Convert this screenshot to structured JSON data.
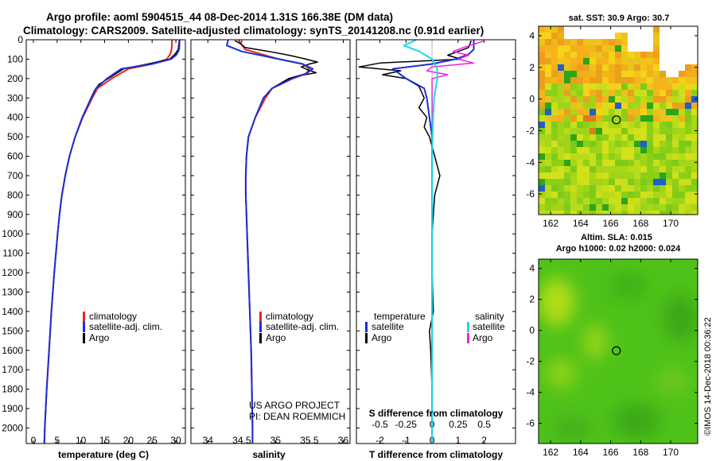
{
  "title": {
    "line1": "Argo profile: aoml 5904515_44 08-Dec-2014 1.31S 166.38E (DM data)",
    "line2": "Climatology: CARS2009. Satellite-adjusted climatology: synTS_20141208.nc (0.91d earlier)"
  },
  "colors": {
    "climatology": "#e8261c",
    "satellite": "#1a2fd6",
    "argo": "#000000",
    "satellite_s": "#22d4ee",
    "argo_s": "#ee22dd"
  },
  "credit": {
    "project": "US ARGO PROJECT",
    "pi": "PI: DEAN ROEMMICH"
  },
  "stamp": "©IMOS 14-Dec-2018 00:36:22",
  "chart_data": [
    {
      "type": "line",
      "name": "temperature",
      "xlabel": "temperature (deg C)",
      "ylabel": "",
      "xlim": [
        -1.5,
        32
      ],
      "ylim": [
        2080,
        0
      ],
      "xticks": [
        0,
        5,
        10,
        15,
        20,
        25,
        30
      ],
      "yticks": [
        0,
        100,
        200,
        300,
        400,
        500,
        600,
        700,
        800,
        900,
        1000,
        1100,
        1200,
        1300,
        1400,
        1500,
        1600,
        1700,
        1800,
        1900,
        2000
      ],
      "legend": [
        "climatology",
        "satellite-adj. clim.",
        "Argo"
      ],
      "series": [
        {
          "name": "climatology",
          "depth": [
            0,
            50,
            75,
            100,
            125,
            150,
            200,
            250,
            300,
            400,
            500,
            600,
            700,
            800,
            900,
            1000,
            1200,
            1400,
            1600,
            1800,
            2000,
            2080
          ],
          "values": [
            29.2,
            29.1,
            28.8,
            28.1,
            25.0,
            20.0,
            16.5,
            13.5,
            12.4,
            10.4,
            8.8,
            7.6,
            6.7,
            6.0,
            5.5,
            5.1,
            4.4,
            3.8,
            3.3,
            2.8,
            2.4,
            2.3
          ]
        },
        {
          "name": "satellite-adj. clim.",
          "depth": [
            0,
            50,
            75,
            100,
            125,
            150,
            200,
            250,
            300,
            400,
            500,
            600,
            700,
            800,
            900,
            1000,
            1200,
            1400,
            1600,
            1800,
            2000,
            2080
          ],
          "values": [
            30.8,
            30.7,
            30.2,
            29.0,
            25.0,
            18.5,
            15.5,
            13.2,
            12.2,
            10.3,
            8.8,
            7.6,
            6.7,
            6.0,
            5.5,
            5.1,
            4.4,
            3.8,
            3.3,
            2.8,
            2.4,
            2.3
          ]
        },
        {
          "name": "Argo",
          "depth": [
            5,
            50,
            75,
            100,
            120,
            150,
            200,
            230,
            260,
            300,
            400,
            500,
            600,
            700,
            800,
            900,
            1000,
            1200,
            1400,
            1600,
            1800,
            2000
          ],
          "values": [
            30.7,
            30.5,
            29.8,
            28.7,
            25.0,
            19.0,
            15.8,
            13.8,
            12.9,
            12.1,
            10.3,
            8.8,
            7.6,
            6.7,
            6.0,
            5.5,
            5.1,
            4.4,
            3.8,
            3.3,
            2.8,
            2.4
          ]
        }
      ]
    },
    {
      "type": "line",
      "name": "salinity",
      "xlabel": "salinity",
      "xlim": [
        33.75,
        36.1
      ],
      "ylim": [
        2080,
        0
      ],
      "xticks": [
        34,
        34.5,
        35,
        35.5,
        36
      ],
      "legend": [
        "climatology",
        "satellite-adj. clim.",
        "Argo"
      ],
      "series": [
        {
          "name": "climatology",
          "depth": [
            0,
            50,
            100,
            125,
            150,
            175,
            200,
            250,
            300,
            400,
            500,
            600,
            700,
            800,
            900,
            1000,
            1200,
            1400,
            1600,
            1800,
            2000,
            2080
          ],
          "values": [
            34.45,
            34.55,
            35.05,
            35.4,
            35.5,
            35.45,
            35.2,
            34.95,
            34.85,
            34.7,
            34.6,
            34.57,
            34.56,
            34.56,
            34.57,
            34.58,
            34.6,
            34.62,
            34.64,
            34.65,
            34.66,
            34.66
          ]
        },
        {
          "name": "satellite-adj. clim.",
          "depth": [
            0,
            30,
            60,
            100,
            125,
            150,
            175,
            200,
            250,
            300,
            400,
            500,
            600,
            700,
            800,
            900,
            1000,
            1200,
            1400,
            1600,
            1800,
            2000,
            2080
          ],
          "values": [
            34.3,
            34.28,
            34.5,
            35.05,
            35.4,
            35.55,
            35.45,
            35.25,
            34.95,
            34.82,
            34.7,
            34.6,
            34.57,
            34.56,
            34.56,
            34.57,
            34.58,
            34.6,
            34.62,
            34.64,
            34.65,
            34.66,
            34.66
          ]
        },
        {
          "name": "Argo",
          "depth": [
            5,
            20,
            40,
            60,
            80,
            100,
            115,
            125,
            140,
            155,
            170,
            185,
            200,
            250,
            300,
            400,
            500,
            600,
            700,
            800,
            900,
            1000,
            1200,
            1400,
            1600,
            1800,
            2000
          ],
          "values": [
            34.4,
            34.48,
            34.55,
            34.9,
            35.2,
            35.45,
            35.62,
            35.5,
            35.38,
            35.48,
            35.6,
            35.35,
            35.2,
            34.95,
            34.82,
            34.7,
            34.6,
            34.57,
            34.56,
            34.56,
            34.57,
            34.58,
            34.6,
            34.62,
            34.64,
            34.65,
            34.66
          ]
        }
      ]
    },
    {
      "type": "line",
      "name": "difference",
      "xlabel": "T difference from climatology",
      "xlabel_top": "S difference from climatology",
      "xlim": [
        -2.9,
        3.2
      ],
      "ylim": [
        2080,
        0
      ],
      "xticks": [
        -2,
        -1,
        0,
        1,
        2
      ],
      "xticks_s": [
        -0.5,
        -0.25,
        0,
        0.25,
        0.5
      ],
      "legend": {
        "temperature_header": "temperature",
        "salinity_header": "salinity",
        "t_items": [
          "satellite",
          "Argo"
        ],
        "s_items": [
          "satellite",
          "Argo"
        ]
      },
      "series": [
        {
          "name": "T satellite",
          "depth": [
            0,
            50,
            75,
            100,
            125,
            150,
            200,
            250,
            300,
            400,
            500,
            700,
            1000,
            1500,
            2000,
            2080
          ],
          "values": [
            1.6,
            1.6,
            1.4,
            0.9,
            0,
            -1.5,
            -1.0,
            -0.3,
            -0.2,
            -0.1,
            0,
            0,
            0,
            0,
            0,
            0
          ]
        },
        {
          "name": "T Argo",
          "depth": [
            5,
            40,
            60,
            80,
            100,
            120,
            140,
            160,
            180,
            200,
            240,
            300,
            350,
            400,
            450,
            500,
            600,
            700,
            800,
            900,
            1000,
            1200,
            1400,
            1500,
            1600,
            1800,
            2000
          ],
          "values": [
            1.5,
            1.4,
            1.0,
            0.6,
            1.1,
            -2.0,
            -2.8,
            -1.2,
            -1.9,
            -1.0,
            -0.5,
            -0.3,
            -0.5,
            -0.2,
            -0.3,
            -0.1,
            0.1,
            0.3,
            0.1,
            0.05,
            0,
            0,
            0.05,
            -0.1,
            -0.05,
            0,
            0
          ]
        },
        {
          "name": "S satellite",
          "depth": [
            0,
            30,
            60,
            100,
            150,
            200,
            300,
            400,
            600,
            1000,
            2000,
            2080
          ],
          "values": [
            -0.15,
            -0.27,
            -0.12,
            0.0,
            0.05,
            0.05,
            0.02,
            0.01,
            0.0,
            0.0,
            0.0,
            0.0
          ]
        },
        {
          "name": "S Argo",
          "depth": [
            5,
            20,
            40,
            60,
            80,
            100,
            120,
            140,
            160,
            180,
            200,
            250,
            300,
            400,
            600,
            800,
            1000,
            1400,
            2000
          ],
          "values": [
            0.5,
            0.42,
            0.3,
            0.2,
            0.35,
            0.25,
            0.4,
            0.0,
            -0.05,
            0.15,
            0.0,
            0.0,
            0.0,
            0.0,
            0.0,
            0.0,
            0.0,
            0.0,
            0.0
          ]
        }
      ]
    },
    {
      "type": "heatmap",
      "name": "sst-map",
      "title": "sat. SST: 30.9 Argo: 30.7",
      "xlim": [
        161.2,
        171.8
      ],
      "ylim": [
        -7.3,
        4.6
      ],
      "xticks": [
        162,
        164,
        166,
        168,
        170
      ],
      "yticks": [
        4,
        2,
        0,
        -2,
        -4,
        -6
      ],
      "argo_position": {
        "lon": 166.38,
        "lat": -1.31
      }
    },
    {
      "type": "heatmap",
      "name": "sla-map",
      "title": "Altim. SLA: 0.015",
      "subtitle": "Argo h1000: 0.02 h2000: 0.024",
      "xlim": [
        161.2,
        171.8
      ],
      "ylim": [
        -7.3,
        4.6
      ],
      "xticks": [
        162,
        164,
        166,
        168,
        170
      ],
      "yticks": [
        4,
        2,
        0,
        -2,
        -4,
        -6
      ],
      "argo_position": {
        "lon": 166.38,
        "lat": -1.31
      }
    }
  ]
}
